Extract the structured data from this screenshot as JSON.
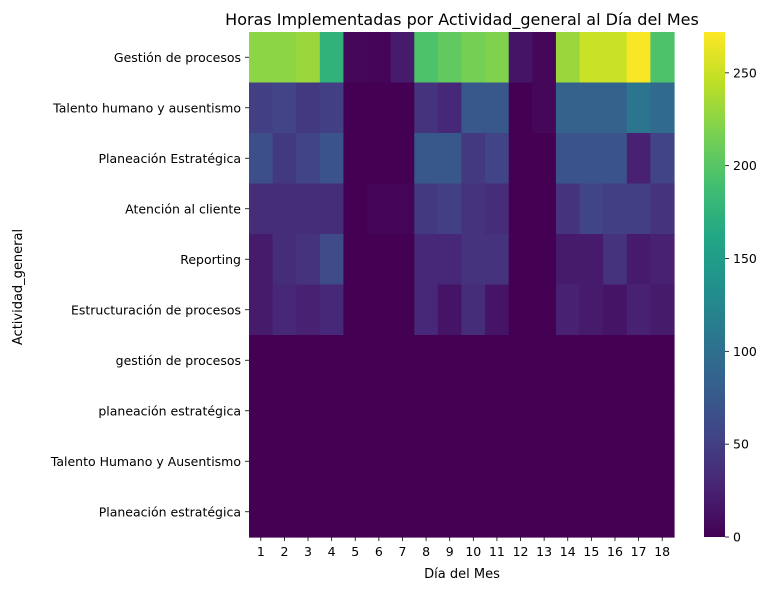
{
  "chart_data": {
    "type": "heatmap",
    "title": "Horas Implementadas por Actividad_general al Día del Mes",
    "xlabel": "Día del Mes",
    "ylabel": "Actividad_general",
    "x": [
      "1",
      "2",
      "3",
      "4",
      "5",
      "6",
      "7",
      "8",
      "9",
      "10",
      "11",
      "12",
      "13",
      "14",
      "15",
      "16",
      "17",
      "18"
    ],
    "y": [
      "Gestión de procesos",
      "Talento humano y ausentismo",
      "Planeación Estratégica",
      "Atención al cliente",
      "Reporting",
      "Estructuración de procesos",
      "gestión de procesos",
      "planeación estratégica",
      "Talento Humano y Ausentismo",
      "Planeación estratégica"
    ],
    "values": [
      [
        225,
        225,
        230,
        175,
        5,
        3,
        20,
        195,
        205,
        215,
        220,
        15,
        5,
        230,
        250,
        250,
        270,
        195
      ],
      [
        50,
        55,
        45,
        50,
        0,
        0,
        0,
        40,
        30,
        75,
        75,
        0,
        5,
        85,
        85,
        85,
        105,
        95
      ],
      [
        65,
        45,
        55,
        70,
        0,
        0,
        0,
        75,
        75,
        45,
        55,
        0,
        0,
        70,
        70,
        70,
        25,
        55
      ],
      [
        35,
        35,
        35,
        35,
        0,
        3,
        3,
        45,
        50,
        40,
        35,
        0,
        0,
        40,
        55,
        50,
        50,
        40
      ],
      [
        20,
        35,
        40,
        60,
        0,
        0,
        0,
        30,
        30,
        40,
        40,
        0,
        0,
        20,
        20,
        40,
        20,
        25
      ],
      [
        20,
        30,
        25,
        30,
        0,
        0,
        0,
        30,
        15,
        35,
        15,
        0,
        0,
        25,
        20,
        15,
        25,
        20
      ],
      [
        0,
        0,
        0,
        0,
        0,
        0,
        0,
        0,
        0,
        0,
        0,
        0,
        0,
        0,
        0,
        0,
        0,
        0
      ],
      [
        0,
        0,
        0,
        0,
        0,
        0,
        0,
        0,
        0,
        0,
        0,
        0,
        0,
        0,
        0,
        0,
        0,
        0
      ],
      [
        0,
        0,
        0,
        0,
        0,
        0,
        0,
        0,
        0,
        0,
        0,
        0,
        0,
        0,
        0,
        0,
        0,
        0
      ],
      [
        0,
        0,
        0,
        0,
        0,
        0,
        0,
        0,
        0,
        0,
        0,
        0,
        0,
        0,
        0,
        0,
        0,
        0
      ]
    ],
    "colormap": "viridis",
    "vmin": 0,
    "vmax": 272,
    "colorbar_ticks": [
      0,
      50,
      100,
      150,
      200,
      250
    ],
    "colorbar_tick_labels": [
      "0",
      "50",
      "100",
      "150",
      "200",
      "250"
    ],
    "grid": false,
    "legend": "colorbar right"
  }
}
